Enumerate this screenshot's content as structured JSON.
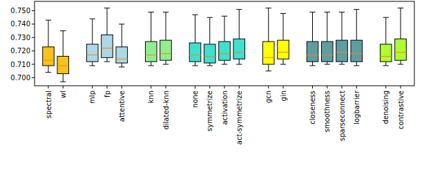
{
  "chart_data": {
    "type": "box",
    "categories": [
      "spectral",
      "wl",
      null,
      "mlp",
      "fp",
      "attentive",
      null,
      "knn",
      "dilated-knn",
      null,
      "none",
      "symmetrize",
      "activation",
      "act-symmetrize",
      null,
      "gcn",
      "gin",
      null,
      "closeness",
      "smoothness",
      "sparseconnect",
      "logbarrier",
      null,
      "denoising",
      "contrastive"
    ],
    "whislo": [
      0.704,
      0.697,
      null,
      0.709,
      0.712,
      0.708,
      null,
      0.709,
      0.71,
      null,
      0.709,
      0.709,
      0.71,
      0.71,
      null,
      0.705,
      0.71,
      null,
      0.709,
      0.71,
      0.71,
      0.709,
      null,
      0.709,
      0.71
    ],
    "q1": [
      0.709,
      0.703,
      null,
      0.712,
      0.715,
      0.711,
      null,
      0.712,
      0.713,
      null,
      0.712,
      0.711,
      0.713,
      0.714,
      null,
      0.71,
      0.714,
      null,
      0.712,
      0.712,
      0.712,
      0.712,
      null,
      0.712,
      0.713
    ],
    "median": [
      0.713,
      0.709,
      null,
      0.717,
      0.722,
      0.714,
      null,
      0.717,
      0.718,
      null,
      0.717,
      0.716,
      0.718,
      0.719,
      null,
      0.715,
      0.719,
      null,
      0.717,
      0.717,
      0.719,
      0.718,
      null,
      0.716,
      0.719
    ],
    "q3": [
      0.723,
      0.716,
      null,
      0.725,
      0.732,
      0.723,
      null,
      0.727,
      0.728,
      null,
      0.726,
      0.725,
      0.727,
      0.729,
      null,
      0.727,
      0.728,
      null,
      0.727,
      0.727,
      0.728,
      0.728,
      null,
      0.725,
      0.729
    ],
    "whishi": [
      0.743,
      0.735,
      null,
      0.744,
      0.752,
      0.74,
      null,
      0.749,
      0.749,
      null,
      0.747,
      0.745,
      0.746,
      0.751,
      null,
      0.752,
      0.748,
      null,
      0.749,
      0.749,
      0.749,
      0.751,
      null,
      0.745,
      0.752
    ],
    "colors": [
      "#f7c31b",
      "#f7c31b",
      null,
      "#add8e6",
      "#add8e6",
      "#add8e6",
      null,
      "#90ee90",
      "#90ee90",
      null,
      "#40e0d0",
      "#40e0d0",
      "#40e0d0",
      "#40e0d0",
      null,
      "#ffff00",
      "#ffff00",
      null,
      "#5f9ea0",
      "#5f9ea0",
      "#5f9ea0",
      "#5f9ea0",
      null,
      "#adff2f",
      "#adff2f"
    ],
    "ylim": [
      0.694,
      0.757
    ],
    "yticks": [
      {
        "value": 0.7,
        "label": "0.700"
      },
      {
        "value": 0.71,
        "label": "0.710"
      },
      {
        "value": 0.72,
        "label": "0.720"
      },
      {
        "value": 0.73,
        "label": "0.730"
      },
      {
        "value": 0.74,
        "label": "0.740"
      },
      {
        "value": 0.75,
        "label": "0.750"
      }
    ],
    "grid": false
  }
}
